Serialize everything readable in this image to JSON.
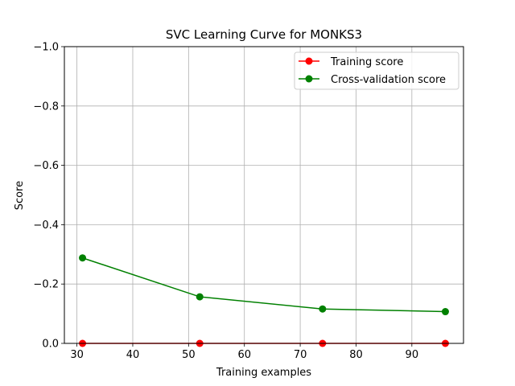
{
  "chart_data": {
    "type": "line",
    "title": "SVC Learning Curve for MONKS3",
    "xlabel": "Training examples",
    "ylabel": "Score",
    "x": [
      31,
      52,
      74,
      96
    ],
    "series": [
      {
        "name": "Training score",
        "values": [
          0,
          0,
          0,
          0
        ],
        "color": "#ff0000"
      },
      {
        "name": "Cross-validation score",
        "values": [
          -0.288,
          -0.157,
          -0.116,
          -0.107
        ],
        "color": "#008000"
      }
    ],
    "xlim": [
      27.75,
      99.25
    ],
    "ylim": [
      0,
      -1.0
    ],
    "y_axis_inverted": true,
    "x_ticks": [
      30,
      40,
      50,
      60,
      70,
      80,
      90
    ],
    "x_tick_labels": [
      "30",
      "40",
      "50",
      "60",
      "70",
      "80",
      "90"
    ],
    "y_ticks": [
      -1.0,
      -0.8,
      -0.6,
      -0.4,
      -0.2,
      0.0
    ],
    "y_tick_labels": [
      "−1.0",
      "−0.8",
      "−0.6",
      "−0.4",
      "−0.2",
      "0.0"
    ],
    "grid": true,
    "legend_position": "top-right"
  }
}
